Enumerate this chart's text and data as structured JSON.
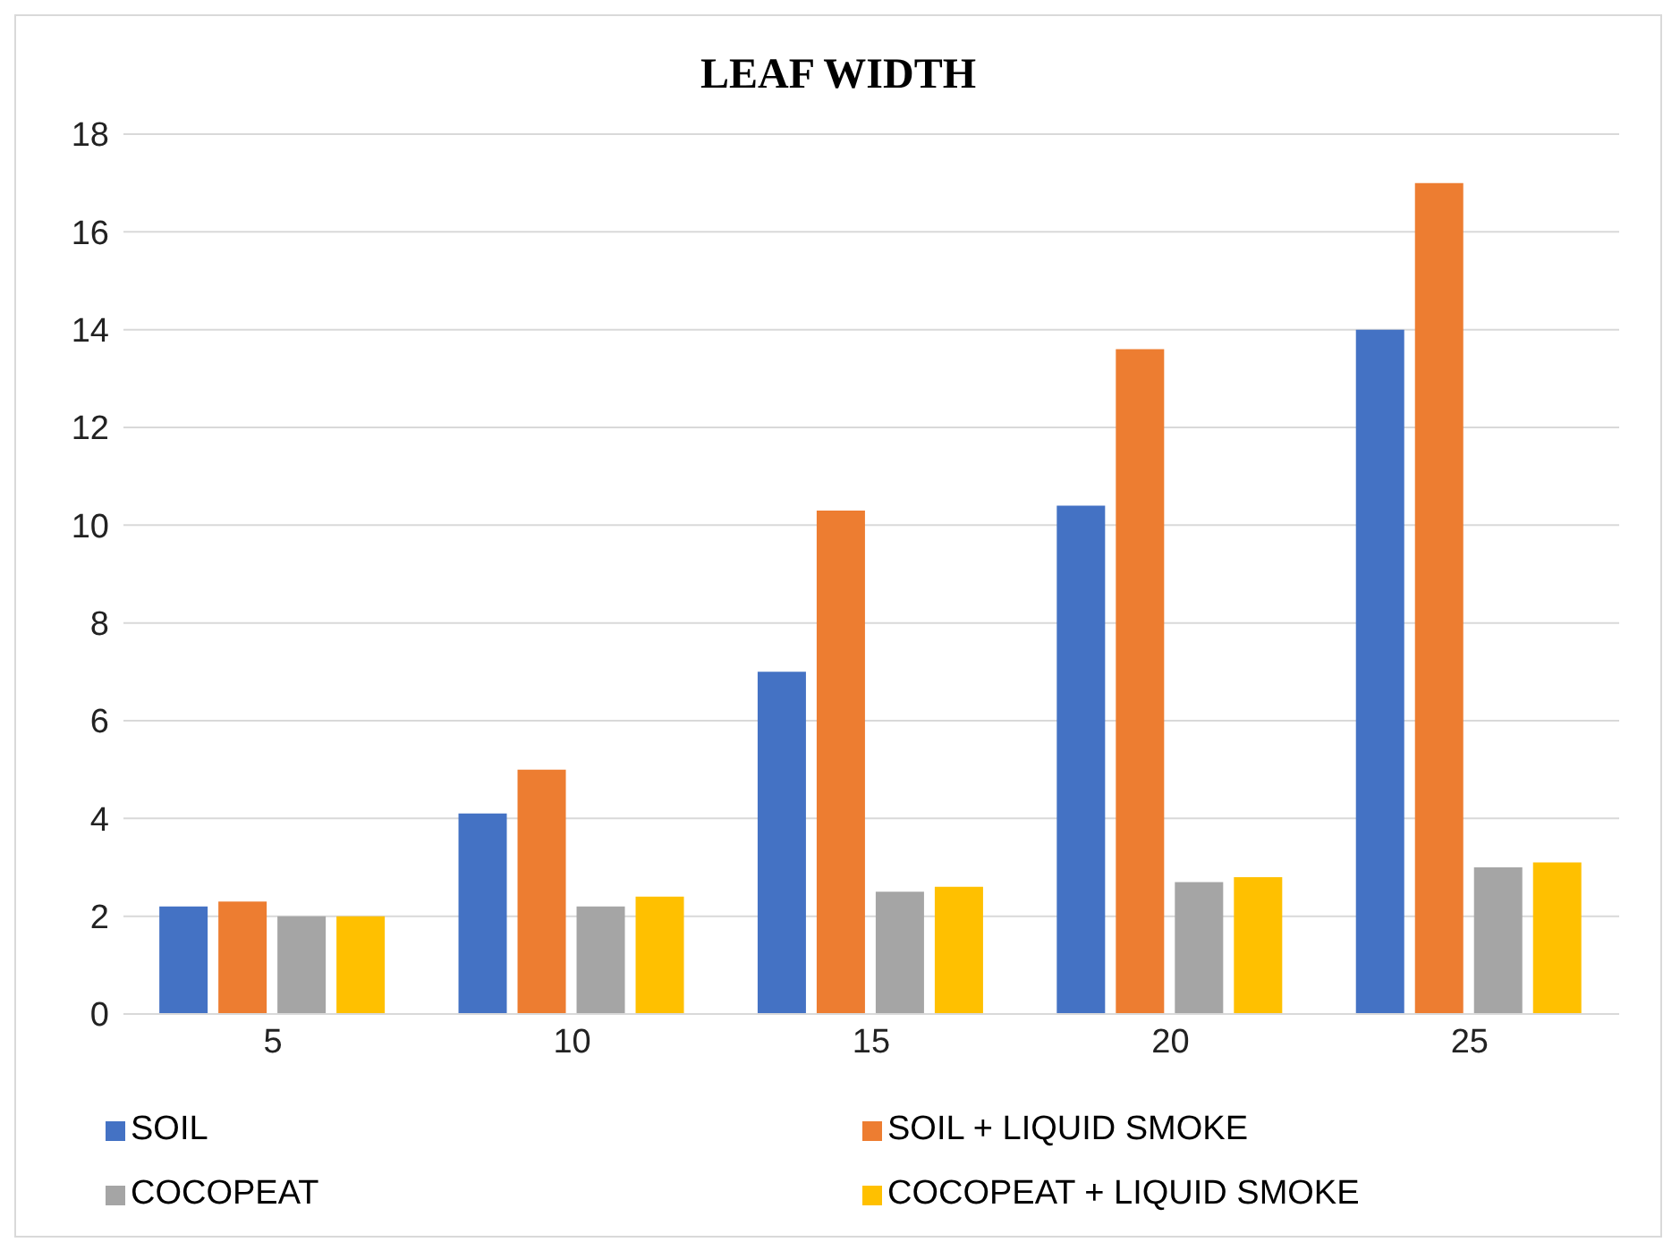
{
  "chart_data": {
    "type": "bar",
    "title": "LEAF WIDTH",
    "categories": [
      "5",
      "10",
      "15",
      "20",
      "25"
    ],
    "series": [
      {
        "name": "SOIL",
        "color": "#4472c4",
        "values": [
          2.2,
          4.1,
          7.0,
          10.4,
          14.0
        ]
      },
      {
        "name": "SOIL + LIQUID SMOKE",
        "color": "#ed7d31",
        "values": [
          2.3,
          5.0,
          10.3,
          13.6,
          17.0
        ]
      },
      {
        "name": "COCOPEAT",
        "color": "#a5a5a5",
        "values": [
          2.0,
          2.2,
          2.5,
          2.7,
          3.0
        ]
      },
      {
        "name": "COCOPEAT + LIQUID SMOKE",
        "color": "#ffc000",
        "values": [
          2.0,
          2.4,
          2.6,
          2.8,
          3.1
        ]
      }
    ],
    "ylim": [
      0,
      18
    ],
    "yticks": [
      0,
      2,
      4,
      6,
      8,
      10,
      12,
      14,
      16,
      18
    ],
    "grid": "y",
    "legend": "bottom"
  }
}
